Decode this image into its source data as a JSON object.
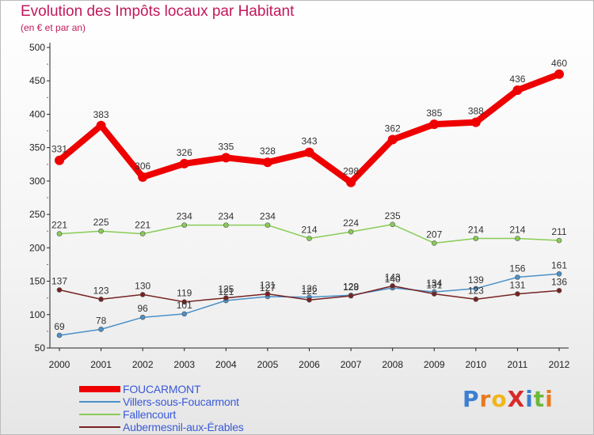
{
  "chart_data": {
    "type": "line",
    "title": "Evolution des Impôts locaux par Habitant",
    "subtitle": "(en € et par an)",
    "x": [
      "2000",
      "2001",
      "2002",
      "2003",
      "2004",
      "2005",
      "2006",
      "2007",
      "2008",
      "2009",
      "2010",
      "2011",
      "2012"
    ],
    "ylim": [
      50,
      500
    ],
    "yticks": [
      50,
      100,
      150,
      200,
      250,
      300,
      350,
      400,
      450,
      500
    ],
    "grid": false,
    "legend_position": "bottom-left",
    "series": [
      {
        "name": "FOUCARMONT",
        "color": "#ee0000",
        "values": [
          331,
          383,
          306,
          326,
          335,
          328,
          343,
          298,
          362,
          385,
          388,
          436,
          460
        ]
      },
      {
        "name": "Villers-sous-Foucarmont",
        "color": "#4a90c8",
        "values": [
          69,
          78,
          96,
          101,
          121,
          127,
          126,
          129,
          140,
          134,
          139,
          156,
          161
        ]
      },
      {
        "name": "Fallencourt",
        "color": "#88cc55",
        "values": [
          221,
          225,
          221,
          234,
          234,
          234,
          214,
          224,
          235,
          207,
          214,
          214,
          211
        ]
      },
      {
        "name": "Aubermesnil-aux-Érables",
        "color": "#772222",
        "values": [
          137,
          123,
          130,
          119,
          125,
          131,
          122,
          128,
          143,
          131,
          123,
          131,
          136
        ]
      }
    ]
  },
  "logo": {
    "text": "ProXiti",
    "letters": [
      "P",
      "r",
      "o",
      "X",
      "i",
      "t",
      "i"
    ],
    "colors": [
      "#3a7fd0",
      "#e87a1e",
      "#f2b51a",
      "#d82a2a",
      "#3a7fd0",
      "#6cb83a",
      "#e87a1e"
    ]
  }
}
